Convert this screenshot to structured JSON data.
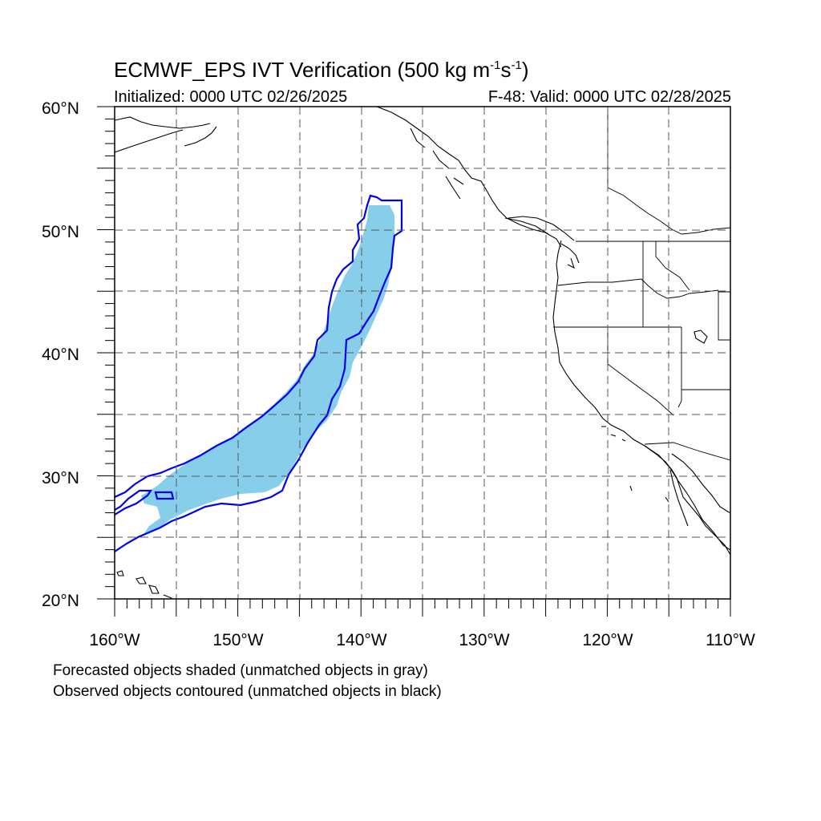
{
  "title": {
    "main": "ECMWF_EPS IVT Verification (500 kg m",
    "sup1": "-1",
    "mid": "s",
    "sup2": "-1",
    "end": ")"
  },
  "subtitle_left": "Initialized: 0000 UTC 02/26/2025",
  "subtitle_right": "F-48: Valid: 0000 UTC 02/28/2025",
  "lat_labels": [
    "20°N",
    "30°N",
    "40°N",
    "50°N",
    "60°N"
  ],
  "lon_labels": [
    "160°W",
    "150°W",
    "140°W",
    "130°W",
    "120°W",
    "110°W"
  ],
  "notes": [
    "Forecasted objects shaded (unmatched objects in gray)",
    "Observed objects contoured (unmatched objects in black)"
  ],
  "colors": {
    "forecast_fill": "#87ceeb",
    "observed_contour": "#0000ee",
    "coast": "#000000",
    "grid": "#555555"
  }
}
